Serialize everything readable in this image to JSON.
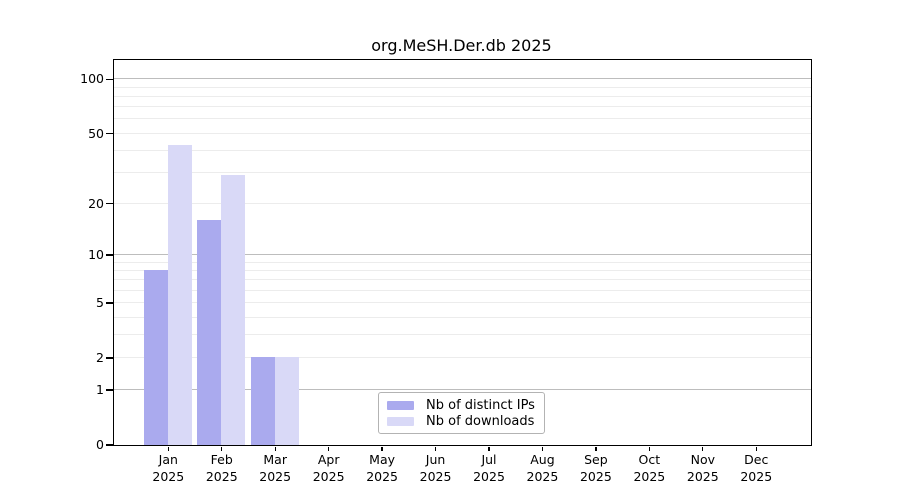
{
  "title": "org.MeSH.Der.db 2025",
  "colors": {
    "distinct_ips_bar": "#aaaaee",
    "downloads_bar": "#d9d9f7",
    "major_gridline": "#bdbdbd",
    "minor_gridline": "#ececec",
    "axis": "#000000",
    "legend_border": "#b3b3b3"
  },
  "legend": {
    "items": [
      {
        "label": "Nb of distinct IPs",
        "swatch": "distinct-ips-swatch"
      },
      {
        "label": "Nb of downloads",
        "swatch": "downloads-swatch"
      }
    ]
  },
  "chart_data": {
    "type": "bar",
    "title": "org.MeSH.Der.db 2025",
    "categories": [
      "Jan 2025",
      "Feb 2025",
      "Mar 2025",
      "Apr 2025",
      "May 2025",
      "Jun 2025",
      "Jul 2025",
      "Aug 2025",
      "Sep 2025",
      "Oct 2025",
      "Nov 2025",
      "Dec 2025"
    ],
    "series": [
      {
        "name": "Nb of distinct IPs",
        "color": "#aaaaee",
        "values": [
          8,
          16,
          2,
          0,
          0,
          0,
          0,
          0,
          0,
          0,
          0,
          0
        ]
      },
      {
        "name": "Nb of downloads",
        "color": "#d9d9f7",
        "values": [
          43,
          29,
          2,
          0,
          0,
          0,
          0,
          0,
          0,
          0,
          0,
          0
        ]
      }
    ],
    "xlabel": "",
    "ylabel": "",
    "yscale": "log10(1+x)",
    "ylim": [
      0,
      128
    ],
    "y_ticks": [
      0,
      1,
      2,
      5,
      10,
      20,
      50,
      100
    ],
    "gridlines": {
      "major": [
        1,
        10,
        100
      ],
      "minor": [
        2,
        3,
        4,
        5,
        6,
        7,
        8,
        9,
        20,
        30,
        40,
        50,
        60,
        70,
        80,
        90
      ]
    },
    "grid": true,
    "legend_position": "inside-bottom-center"
  }
}
